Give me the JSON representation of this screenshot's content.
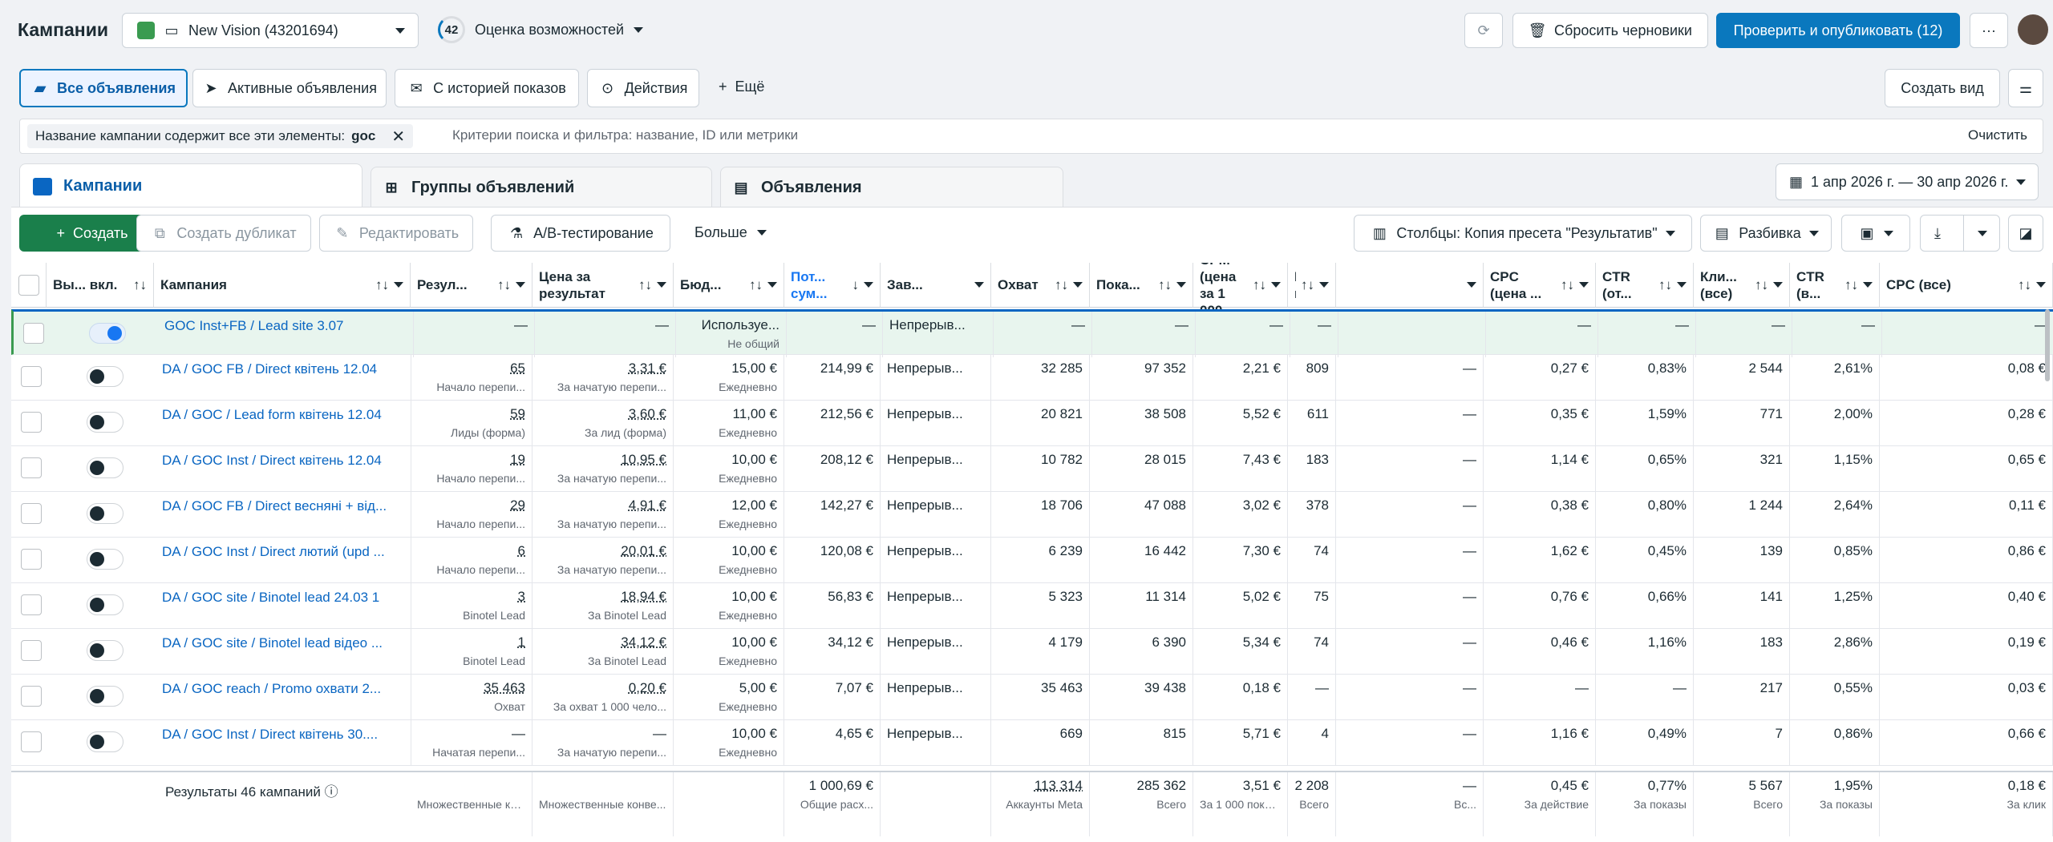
{
  "topbar": {
    "title": "Кампании",
    "account": "New Vision (43201694)",
    "score": "42",
    "opportunity": "Оценка возможностей",
    "reset_drafts": "Сбросить черновики",
    "publish": "Проверить и опубликовать (12)",
    "more": "···"
  },
  "filters": {
    "all_ads": "Все объявления",
    "active_ads": "Активные объявления",
    "with_history": "С историей показов",
    "actions": "Действия",
    "more": "Ещё",
    "create_view": "Создать вид"
  },
  "search": {
    "chip_label": "Название кампании содержит все эти элементы:",
    "chip_value": "goc",
    "placeholder": "Критерии поиска и фильтра: название, ID или метрики",
    "clear": "Очистить"
  },
  "tabs": {
    "campaigns": "Кампании",
    "adsets": "Группы объявлений",
    "ads": "Объявления",
    "date_range": "1 апр 2026 г. — 30 апр 2026 г."
  },
  "toolbar": {
    "create": "Создать",
    "duplicate": "Создать дубликат",
    "edit": "Редактировать",
    "ab": "A/B-тестирование",
    "more": "Больше",
    "columns": "Столбцы: Копия пресета \"Результатив\"",
    "breakdown": "Разбивка"
  },
  "columns": [
    {
      "label": "Вы... вкл."
    },
    {
      "label": "Кампания"
    },
    {
      "label": "Резул..."
    },
    {
      "label": "Цена за результат"
    },
    {
      "label": "Бюд..."
    },
    {
      "label": "Пот... сум..."
    },
    {
      "label": "Зав..."
    },
    {
      "label": "Охват"
    },
    {
      "label": "Пока..."
    },
    {
      "label": "CPM (цена за 1 000..."
    },
    {
      "label": "Клики по..."
    },
    {
      "label": ""
    },
    {
      "label": "CPC (цена ..."
    },
    {
      "label": "CTR (от..."
    },
    {
      "label": "Кли... (все)"
    },
    {
      "label": "CTR (в..."
    },
    {
      "label": "CPC (все)"
    },
    {
      "label": "L..."
    }
  ],
  "rows": [
    {
      "on": true,
      "name": "GOC Inst+FB / Lead site 3.07",
      "res": "—",
      "res_s": "",
      "cpr": "—",
      "cpr_s": "",
      "bud": "Используе...",
      "bud_s": "Не общий",
      "spent": "—",
      "del": "Непрерыв...",
      "reach": "—",
      "impr": "—",
      "cpm": "—",
      "clicks": "—",
      "x": "",
      "cpc": "—",
      "ctr": "—",
      "call": "—",
      "ctrall": "—",
      "cpcall": "—"
    },
    {
      "on": false,
      "name": "DA / GOC FB / Direct квітень 12.04",
      "res": "65",
      "res_s": "Начало перепи...",
      "cpr": "3,31 €",
      "cpr_s": "За начатую перепи...",
      "bud": "15,00 €",
      "bud_s": "Ежедневно",
      "spent": "214,99 €",
      "del": "Непрерыв...",
      "reach": "32 285",
      "impr": "97 352",
      "cpm": "2,21 €",
      "clicks": "809",
      "x": "—",
      "cpc": "0,27 €",
      "ctr": "0,83%",
      "call": "2 544",
      "ctrall": "2,61%",
      "cpcall": "0,08 €"
    },
    {
      "on": false,
      "name": "DA / GOC / Lead form квітень 12.04",
      "res": "59",
      "res_s": "Лиды (форма)",
      "cpr": "3,60 €",
      "cpr_s": "За лид (форма)",
      "bud": "11,00 €",
      "bud_s": "Ежедневно",
      "spent": "212,56 €",
      "del": "Непрерыв...",
      "reach": "20 821",
      "impr": "38 508",
      "cpm": "5,52 €",
      "clicks": "611",
      "x": "—",
      "cpc": "0,35 €",
      "ctr": "1,59%",
      "call": "771",
      "ctrall": "2,00%",
      "cpcall": "0,28 €"
    },
    {
      "on": false,
      "name": "DA / GOC Inst / Direct квітень 12.04",
      "res": "19",
      "res_s": "Начало перепи...",
      "cpr": "10,95 €",
      "cpr_s": "За начатую перепи...",
      "bud": "10,00 €",
      "bud_s": "Ежедневно",
      "spent": "208,12 €",
      "del": "Непрерыв...",
      "reach": "10 782",
      "impr": "28 015",
      "cpm": "7,43 €",
      "clicks": "183",
      "x": "—",
      "cpc": "1,14 €",
      "ctr": "0,65%",
      "call": "321",
      "ctrall": "1,15%",
      "cpcall": "0,65 €"
    },
    {
      "on": false,
      "name": "DA / GOC FB / Direct весняні + від...",
      "res": "29",
      "res_s": "Начало перепи...",
      "cpr": "4,91 €",
      "cpr_s": "За начатую перепи...",
      "bud": "12,00 €",
      "bud_s": "Ежедневно",
      "spent": "142,27 €",
      "del": "Непрерыв...",
      "reach": "18 706",
      "impr": "47 088",
      "cpm": "3,02 €",
      "clicks": "378",
      "x": "—",
      "cpc": "0,38 €",
      "ctr": "0,80%",
      "call": "1 244",
      "ctrall": "2,64%",
      "cpcall": "0,11 €"
    },
    {
      "on": false,
      "name": "DA / GOC Inst / Direct лютий (upd ...",
      "res": "6",
      "res_s": "Начало перепи...",
      "cpr": "20,01 €",
      "cpr_s": "За начатую перепи...",
      "bud": "10,00 €",
      "bud_s": "Ежедневно",
      "spent": "120,08 €",
      "del": "Непрерыв...",
      "reach": "6 239",
      "impr": "16 442",
      "cpm": "7,30 €",
      "clicks": "74",
      "x": "—",
      "cpc": "1,62 €",
      "ctr": "0,45%",
      "call": "139",
      "ctrall": "0,85%",
      "cpcall": "0,86 €"
    },
    {
      "on": false,
      "name": "DA / GOC site / Binotel lead 24.03 1",
      "res": "3",
      "res_s": "Binotel Lead",
      "cpr": "18,94 €",
      "cpr_s": "За Binotel Lead",
      "bud": "10,00 €",
      "bud_s": "Ежедневно",
      "spent": "56,83 €",
      "del": "Непрерыв...",
      "reach": "5 323",
      "impr": "11 314",
      "cpm": "5,02 €",
      "clicks": "75",
      "x": "—",
      "cpc": "0,76 €",
      "ctr": "0,66%",
      "call": "141",
      "ctrall": "1,25%",
      "cpcall": "0,40 €"
    },
    {
      "on": false,
      "name": "DA / GOC site / Binotel lead відео ...",
      "res": "1",
      "res_s": "Binotel Lead",
      "cpr": "34,12 €",
      "cpr_s": "За Binotel Lead",
      "bud": "10,00 €",
      "bud_s": "Ежедневно",
      "spent": "34,12 €",
      "del": "Непрерыв...",
      "reach": "4 179",
      "impr": "6 390",
      "cpm": "5,34 €",
      "clicks": "74",
      "x": "—",
      "cpc": "0,46 €",
      "ctr": "1,16%",
      "call": "183",
      "ctrall": "2,86%",
      "cpcall": "0,19 €"
    },
    {
      "on": false,
      "name": "DA / GOC reach / Promo охвати 2...",
      "res": "35 463",
      "res_s": "Охват",
      "cpr": "0,20 €",
      "cpr_s": "За охват 1 000 чело...",
      "bud": "5,00 €",
      "bud_s": "Ежедневно",
      "spent": "7,07 €",
      "del": "Непрерыв...",
      "reach": "35 463",
      "impr": "39 438",
      "cpm": "0,18 €",
      "clicks": "—",
      "x": "—",
      "cpc": "—",
      "ctr": "—",
      "call": "217",
      "ctrall": "0,55%",
      "cpcall": "0,03 €"
    },
    {
      "on": false,
      "name": "DA / GOC Inst / Direct квітень 30....",
      "res": "—",
      "res_s": "Начатая перепи...",
      "cpr": "—",
      "cpr_s": "За начатую перепи...",
      "bud": "10,00 €",
      "bud_s": "Ежедневно",
      "spent": "4,65 €",
      "del": "Непрерыв...",
      "reach": "669",
      "impr": "815",
      "cpm": "5,71 €",
      "clicks": "4",
      "x": "—",
      "cpc": "1,16 €",
      "ctr": "0,49%",
      "call": "7",
      "ctrall": "0,86%",
      "cpcall": "0,66 €"
    }
  ],
  "totals": {
    "label": "Результаты 46 кампаний",
    "res_s": "Множественные ко...",
    "cpr_s": "Множественные конве...",
    "spent": "1 000,69 €",
    "spent_s": "Общие расх...",
    "reach": "113 314",
    "reach_s": "Аккаунты Meta",
    "impr": "285 362",
    "impr_s": "Всего",
    "cpm": "3,51 €",
    "cpm_s": "За 1 000 показов",
    "clicks": "2 208",
    "clicks_s": "Всего",
    "x": "—",
    "x_s": "Вс...",
    "cpc": "0,45 €",
    "cpc_s": "За действие",
    "ctr": "0,77%",
    "ctr_s": "За показы",
    "call": "5 567",
    "call_s": "Всего",
    "ctrall": "1,95%",
    "ctrall_s": "За показы",
    "cpcall": "0,18 €",
    "cpcall_s": "За клик"
  }
}
